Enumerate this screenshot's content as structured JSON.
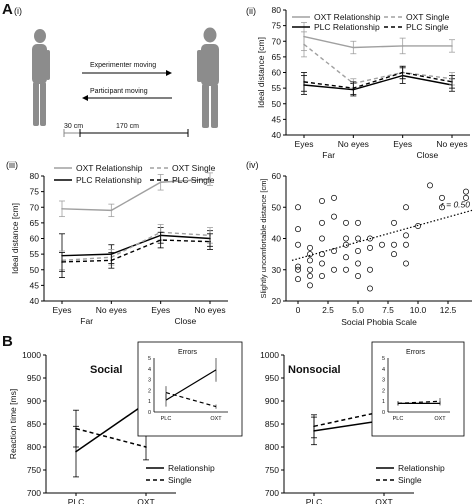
{
  "panels": {
    "A": "A",
    "B": "B",
    "i": "(i)",
    "ii": "(ii)",
    "iii": "(iii)",
    "iv": "(iv)"
  },
  "diagram": {
    "experimenter": "Experimenter moving",
    "participant": "Participant moving",
    "dist_small": "30 cm",
    "dist_big": "170 cm"
  },
  "colors": {
    "oxt_rel": "#a0a0a0",
    "plc_rel": "#000000",
    "oxt_single": "#a0a0a0",
    "plc_single": "#000000"
  },
  "chart_data": [
    {
      "id": "ii",
      "type": "line",
      "ylabel": "Ideal distance [cm]",
      "ylim": [
        40,
        80
      ],
      "yticks": [
        40,
        45,
        50,
        55,
        60,
        65,
        70,
        75,
        80
      ],
      "categories": [
        "Eyes",
        "No eyes",
        "Eyes",
        "No eyes"
      ],
      "groups": [
        "Far",
        "Close"
      ],
      "series": [
        {
          "name": "OXT Relationship",
          "values": [
            71.5,
            68,
            68.5,
            68.5
          ],
          "err": [
            4.5,
            2,
            2.5,
            2
          ]
        },
        {
          "name": "PLC Relationship",
          "values": [
            56,
            54.5,
            59,
            56
          ],
          "err": [
            3,
            2,
            2.5,
            2
          ]
        },
        {
          "name": "OXT Single",
          "values": [
            69,
            56.5,
            60,
            58
          ],
          "err": [
            4,
            1.5,
            2,
            2
          ]
        },
        {
          "name": "PLC Single",
          "values": [
            57,
            55,
            60,
            57
          ],
          "err": [
            3,
            2,
            2,
            2
          ]
        }
      ]
    },
    {
      "id": "iii",
      "type": "line",
      "ylabel": "Ideal distance [cm]",
      "ylim": [
        40,
        80
      ],
      "yticks": [
        40,
        45,
        50,
        55,
        60,
        65,
        70,
        75,
        80
      ],
      "categories": [
        "Eyes",
        "No eyes",
        "Eyes",
        "No eyes"
      ],
      "groups": [
        "Far",
        "Close"
      ],
      "series": [
        {
          "name": "OXT Relationship",
          "values": [
            69.5,
            69,
            78,
            79
          ],
          "err": [
            2.5,
            2,
            2.5,
            2
          ]
        },
        {
          "name": "PLC Relationship",
          "values": [
            54.5,
            55,
            61,
            60
          ],
          "err": [
            7,
            3,
            2.5,
            2.5
          ]
        },
        {
          "name": "OXT Single",
          "values": [
            53,
            54,
            62,
            61
          ],
          "err": [
            3,
            2.5,
            2.5,
            2.5
          ]
        },
        {
          "name": "PLC Single",
          "values": [
            52.5,
            53,
            59.5,
            59
          ],
          "err": [
            3,
            2.5,
            2.5,
            2.5
          ]
        }
      ]
    },
    {
      "id": "iv",
      "type": "scatter",
      "xlabel": "Social Phobia Scale",
      "ylabel": "Slightly uncomfortable distance [cm]",
      "xlim": [
        -1,
        14.5
      ],
      "ylim": [
        20,
        60
      ],
      "xticks": [
        0,
        2.5,
        5,
        7.5,
        10,
        12.5
      ],
      "xtick_labels": [
        "0",
        "2.5",
        "5.0",
        "7.5",
        "10.0",
        "12.5"
      ],
      "yticks": [
        20,
        30,
        40,
        50,
        60
      ],
      "annotation": "r = 0.50",
      "trend": [
        [
          -0.5,
          33
        ],
        [
          14.5,
          49
        ]
      ],
      "points": [
        [
          0,
          50
        ],
        [
          0,
          43
        ],
        [
          0,
          38
        ],
        [
          0,
          31
        ],
        [
          0,
          30
        ],
        [
          0,
          27
        ],
        [
          1,
          37
        ],
        [
          1,
          35
        ],
        [
          1,
          33
        ],
        [
          1,
          30
        ],
        [
          1,
          28
        ],
        [
          1,
          25
        ],
        [
          2,
          52
        ],
        [
          2,
          45
        ],
        [
          2,
          40
        ],
        [
          2,
          35
        ],
        [
          2,
          32
        ],
        [
          2,
          28
        ],
        [
          3,
          53
        ],
        [
          3,
          47
        ],
        [
          3,
          36
        ],
        [
          3,
          30
        ],
        [
          4,
          45
        ],
        [
          4,
          40
        ],
        [
          4,
          38
        ],
        [
          4,
          34
        ],
        [
          4,
          30
        ],
        [
          5,
          45
        ],
        [
          5,
          40
        ],
        [
          5,
          36
        ],
        [
          5,
          32
        ],
        [
          5,
          28
        ],
        [
          6,
          40
        ],
        [
          6,
          37
        ],
        [
          6,
          30
        ],
        [
          6,
          24
        ],
        [
          7,
          38
        ],
        [
          8,
          45
        ],
        [
          8,
          38
        ],
        [
          8,
          35
        ],
        [
          9,
          50
        ],
        [
          9,
          41
        ],
        [
          9,
          38
        ],
        [
          9,
          32
        ],
        [
          10,
          44
        ],
        [
          11,
          57
        ],
        [
          12,
          53
        ],
        [
          12,
          50
        ],
        [
          14,
          55
        ],
        [
          14,
          53
        ]
      ]
    },
    {
      "id": "B-social",
      "type": "line",
      "title": "Social",
      "ylabel": "Reaction time [ms]",
      "ylim": [
        700,
        1000
      ],
      "yticks": [
        700,
        750,
        800,
        850,
        900,
        950,
        1000
      ],
      "categories": [
        "PLC",
        "OXT"
      ],
      "series": [
        {
          "name": "Relationship",
          "values": [
            790,
            895
          ],
          "err": [
            55,
            40
          ]
        },
        {
          "name": "Single",
          "values": [
            840,
            800
          ],
          "err": [
            40,
            28
          ]
        }
      ],
      "inset": {
        "title": "Errors",
        "ylim": [
          0,
          5
        ],
        "yticks": [
          0,
          1,
          2,
          3,
          4,
          5
        ],
        "categories": [
          "PLC",
          "OXT"
        ],
        "series": [
          {
            "name": "Relationship",
            "values": [
              1.1,
              3.9
            ],
            "err": [
              0.6,
              1.1
            ]
          },
          {
            "name": "Single",
            "values": [
              1.8,
              0.5
            ],
            "err": [
              0.6,
              0.2
            ]
          }
        ]
      }
    },
    {
      "id": "B-nonsocial",
      "type": "line",
      "title": "Nonsocial",
      "ylim": [
        700,
        1000
      ],
      "yticks": [
        700,
        750,
        800,
        850,
        900,
        950,
        1000
      ],
      "categories": [
        "PLC",
        "OXT"
      ],
      "series": [
        {
          "name": "Relationship",
          "values": [
            835,
            858
          ],
          "err": [
            30,
            30
          ]
        },
        {
          "name": "Single",
          "values": [
            845,
            878
          ],
          "err": [
            25,
            28
          ]
        }
      ],
      "inset": {
        "title": "Errors",
        "ylim": [
          0,
          5
        ],
        "yticks": [
          0,
          1,
          2,
          3,
          4,
          5
        ],
        "categories": [
          "PLC",
          "OXT"
        ],
        "series": [
          {
            "name": "Relationship",
            "values": [
              0.8,
              0.8
            ],
            "err": [
              0.2,
              0.2
            ]
          },
          {
            "name": "Single",
            "values": [
              0.8,
              1.0
            ],
            "err": [
              0.2,
              0.3
            ]
          }
        ]
      }
    }
  ]
}
